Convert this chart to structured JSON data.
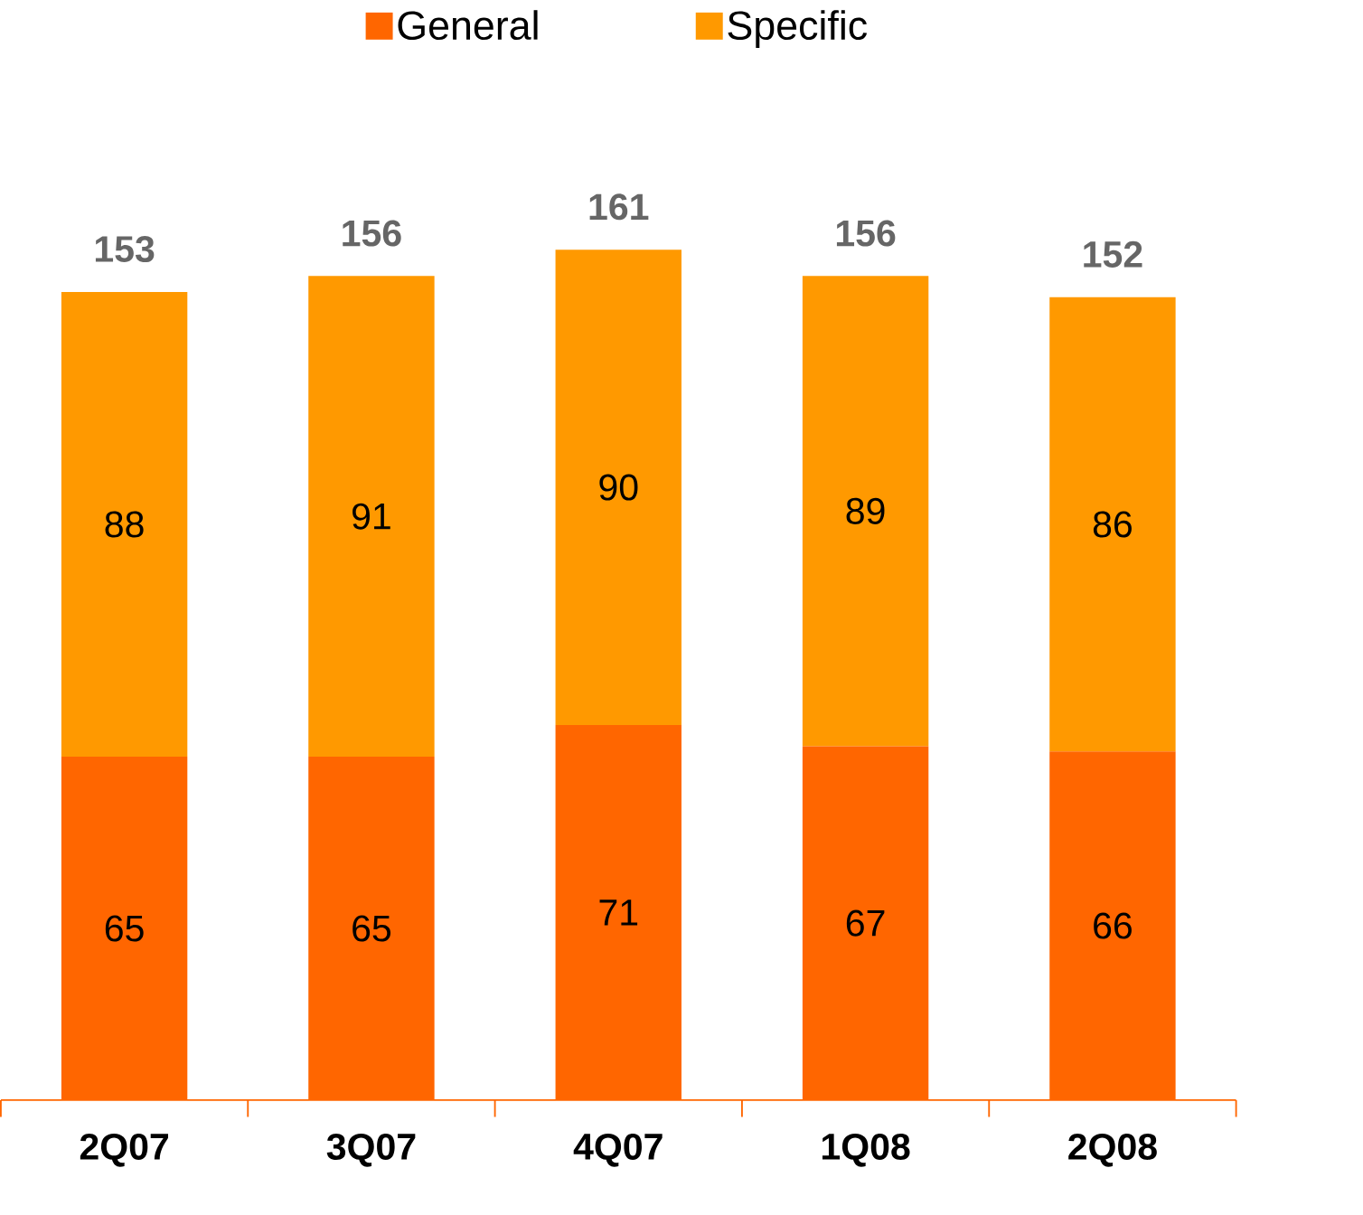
{
  "chart_data": {
    "type": "bar",
    "stacked": true,
    "categories": [
      "2Q07",
      "3Q07",
      "4Q07",
      "1Q08",
      "2Q08"
    ],
    "series": [
      {
        "name": "General",
        "color": "#ff6600",
        "values": [
          65,
          65,
          71,
          67,
          66
        ]
      },
      {
        "name": "Specific",
        "color": "#ff9900",
        "values": [
          88,
          91,
          90,
          89,
          86
        ]
      }
    ],
    "data_labels": true,
    "totals": [
      "153",
      "156",
      "161",
      "156",
      "152"
    ],
    "legend": "top",
    "tick_labels": "x"
  }
}
